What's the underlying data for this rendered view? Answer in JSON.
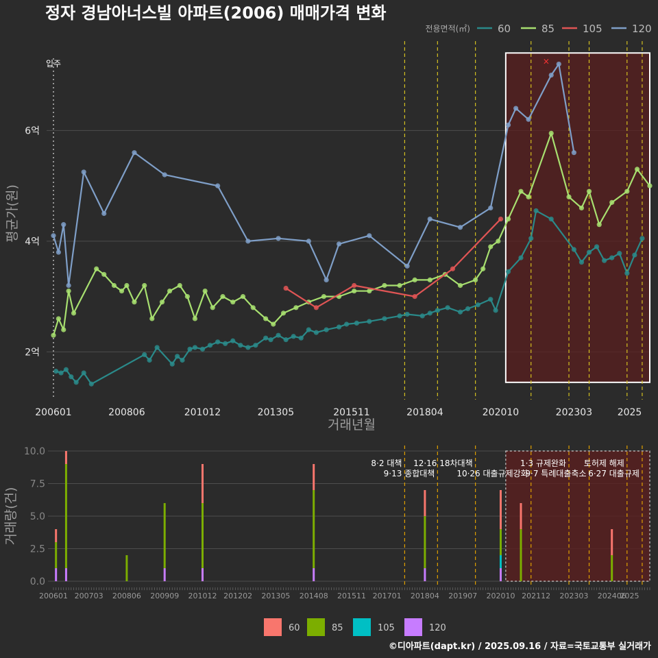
{
  "title": "정자 경남아너스빌 아파트(2006) 매매가격 변화",
  "caption": "©디아파트(dapt.kr) / 2025.09.16 / 자료=국토교통부 실거래가",
  "colors": {
    "60": "#f8766d",
    "85": "#7cae00",
    "105": "#00bfc4",
    "120": "#c77cff",
    "line60": "#2a8a8a",
    "line85": "#a8e070",
    "line105": "#e05555",
    "line120": "#7f9fc8",
    "vline": "#d4c020",
    "box": "#ffffff",
    "highlight": "#5a1f1f"
  },
  "chart_data": [
    {
      "type": "line",
      "xlabel": "거래년월",
      "ylabel": "평균가(원)",
      "x_ticks": [
        "200601",
        "200806",
        "201012",
        "201305",
        "201511",
        "201804",
        "202010",
        "202303",
        "2025"
      ],
      "y_ticks": [
        {
          "value": 2,
          "label": "2억"
        },
        {
          "value": 4,
          "label": "4억"
        },
        {
          "value": 6,
          "label": "6억"
        }
      ],
      "ylim": [
        1.2,
        7.8
      ],
      "xlim": [
        "2006-01",
        "2025-09"
      ],
      "legend_title": "전용면적(㎡)",
      "legend_position": "top-right",
      "occupancy_label": "입주",
      "occupancy_date": "2006-01",
      "policy_dates": [
        "2017-08",
        "2018-09",
        "2019-12",
        "2021-10",
        "2023-01",
        "2023-09",
        "2024-12",
        "2025-06"
      ],
      "highlight_range": [
        "2020-12",
        "2025-09"
      ],
      "max_marker": {
        "x": "2022-04",
        "y": 7.25
      },
      "series": [
        {
          "name": "60",
          "points": [
            [
              "2006-02",
              1.65
            ],
            [
              "2006-04",
              1.62
            ],
            [
              "2006-06",
              1.68
            ],
            [
              "2006-08",
              1.55
            ],
            [
              "2006-10",
              1.45
            ],
            [
              "2007-01",
              1.62
            ],
            [
              "2007-04",
              1.42
            ],
            [
              "2009-01",
              1.95
            ],
            [
              "2009-03",
              1.85
            ],
            [
              "2009-06",
              2.08
            ],
            [
              "2009-12",
              1.78
            ],
            [
              "2010-02",
              1.92
            ],
            [
              "2010-04",
              1.85
            ],
            [
              "2010-07",
              2.05
            ],
            [
              "2010-09",
              2.08
            ],
            [
              "2010-12",
              2.05
            ],
            [
              "2011-03",
              2.12
            ],
            [
              "2011-06",
              2.18
            ],
            [
              "2011-09",
              2.15
            ],
            [
              "2011-12",
              2.2
            ],
            [
              "2012-03",
              2.12
            ],
            [
              "2012-06",
              2.08
            ],
            [
              "2012-09",
              2.12
            ],
            [
              "2013-01",
              2.25
            ],
            [
              "2013-03",
              2.22
            ],
            [
              "2013-06",
              2.3
            ],
            [
              "2013-09",
              2.22
            ],
            [
              "2013-12",
              2.28
            ],
            [
              "2014-03",
              2.25
            ],
            [
              "2014-06",
              2.4
            ],
            [
              "2014-09",
              2.35
            ],
            [
              "2015-01",
              2.4
            ],
            [
              "2015-06",
              2.45
            ],
            [
              "2015-09",
              2.5
            ],
            [
              "2016-01",
              2.52
            ],
            [
              "2016-06",
              2.55
            ],
            [
              "2016-12",
              2.6
            ],
            [
              "2017-06",
              2.65
            ],
            [
              "2017-09",
              2.68
            ],
            [
              "2018-03",
              2.65
            ],
            [
              "2018-06",
              2.7
            ],
            [
              "2018-09",
              2.75
            ],
            [
              "2019-01",
              2.8
            ],
            [
              "2019-06",
              2.72
            ],
            [
              "2019-09",
              2.78
            ],
            [
              "2020-01",
              2.85
            ],
            [
              "2020-06",
              2.95
            ],
            [
              "2020-08",
              2.75
            ],
            [
              "2021-01",
              3.45
            ],
            [
              "2021-06",
              3.7
            ],
            [
              "2021-10",
              4.05
            ],
            [
              "2021-12",
              4.55
            ],
            [
              "2022-06",
              4.4
            ],
            [
              "2023-03",
              3.85
            ],
            [
              "2023-06",
              3.62
            ],
            [
              "2023-09",
              3.8
            ],
            [
              "2023-12",
              3.9
            ],
            [
              "2024-03",
              3.65
            ],
            [
              "2024-06",
              3.7
            ],
            [
              "2024-09",
              3.78
            ],
            [
              "2024-12",
              3.42
            ],
            [
              "2025-03",
              3.75
            ],
            [
              "2025-06",
              4.05
            ]
          ]
        },
        {
          "name": "85",
          "points": [
            [
              "2006-01",
              2.3
            ],
            [
              "2006-03",
              2.6
            ],
            [
              "2006-05",
              2.4
            ],
            [
              "2006-07",
              3.1
            ],
            [
              "2006-09",
              2.7
            ],
            [
              "2007-06",
              3.5
            ],
            [
              "2007-09",
              3.4
            ],
            [
              "2008-01",
              3.2
            ],
            [
              "2008-04",
              3.1
            ],
            [
              "2008-06",
              3.2
            ],
            [
              "2008-09",
              2.9
            ],
            [
              "2009-01",
              3.2
            ],
            [
              "2009-04",
              2.6
            ],
            [
              "2009-08",
              2.9
            ],
            [
              "2009-11",
              3.1
            ],
            [
              "2010-03",
              3.2
            ],
            [
              "2010-06",
              3.0
            ],
            [
              "2010-09",
              2.6
            ],
            [
              "2011-01",
              3.1
            ],
            [
              "2011-04",
              2.8
            ],
            [
              "2011-08",
              3.0
            ],
            [
              "2011-12",
              2.9
            ],
            [
              "2012-04",
              3.0
            ],
            [
              "2012-08",
              2.8
            ],
            [
              "2013-01",
              2.6
            ],
            [
              "2013-04",
              2.5
            ],
            [
              "2013-08",
              2.7
            ],
            [
              "2014-01",
              2.8
            ],
            [
              "2014-06",
              2.9
            ],
            [
              "2014-12",
              3.0
            ],
            [
              "2015-06",
              3.0
            ],
            [
              "2015-12",
              3.1
            ],
            [
              "2016-06",
              3.1
            ],
            [
              "2016-12",
              3.2
            ],
            [
              "2017-06",
              3.2
            ],
            [
              "2017-12",
              3.3
            ],
            [
              "2018-06",
              3.3
            ],
            [
              "2018-12",
              3.4
            ],
            [
              "2019-06",
              3.2
            ],
            [
              "2019-12",
              3.3
            ],
            [
              "2020-03",
              3.5
            ],
            [
              "2020-06",
              3.9
            ],
            [
              "2020-09",
              4.0
            ],
            [
              "2021-01",
              4.4
            ],
            [
              "2021-06",
              4.9
            ],
            [
              "2021-09",
              4.8
            ],
            [
              "2022-06",
              5.95
            ],
            [
              "2023-01",
              4.8
            ],
            [
              "2023-06",
              4.6
            ],
            [
              "2023-09",
              4.9
            ],
            [
              "2024-01",
              4.3
            ],
            [
              "2024-06",
              4.7
            ],
            [
              "2024-12",
              4.9
            ],
            [
              "2025-04",
              5.3
            ],
            [
              "2025-09",
              5.0
            ]
          ]
        },
        {
          "name": "105",
          "points": [
            [
              "2013-09",
              3.15
            ],
            [
              "2014-09",
              2.8
            ],
            [
              "2015-12",
              3.2
            ],
            [
              "2017-12",
              3.0
            ],
            [
              "2019-03",
              3.5
            ],
            [
              "2020-10",
              4.4
            ]
          ]
        },
        {
          "name": "120",
          "points": [
            [
              "2006-01",
              4.1
            ],
            [
              "2006-03",
              3.8
            ],
            [
              "2006-05",
              4.3
            ],
            [
              "2006-07",
              3.2
            ],
            [
              "2007-01",
              5.25
            ],
            [
              "2007-09",
              4.5
            ],
            [
              "2008-09",
              5.6
            ],
            [
              "2009-09",
              5.2
            ],
            [
              "2011-06",
              5.0
            ],
            [
              "2012-06",
              4.0
            ],
            [
              "2013-06",
              4.05
            ],
            [
              "2014-06",
              4.0
            ],
            [
              "2015-01",
              3.3
            ],
            [
              "2015-06",
              3.95
            ],
            [
              "2016-06",
              4.1
            ],
            [
              "2017-09",
              3.55
            ],
            [
              "2018-06",
              4.4
            ],
            [
              "2019-06",
              4.25
            ],
            [
              "2020-06",
              4.6
            ],
            [
              "2021-01",
              6.1
            ],
            [
              "2021-04",
              6.4
            ],
            [
              "2021-09",
              6.2
            ],
            [
              "2022-06",
              7.0
            ],
            [
              "2022-09",
              7.2
            ],
            [
              "2023-03",
              5.6
            ]
          ]
        }
      ]
    },
    {
      "type": "bar",
      "stacked": true,
      "ylabel": "거래량(건)",
      "y_ticks": [
        "0.0",
        "2.5",
        "5.0",
        "7.5",
        "10.0"
      ],
      "ylim": [
        0,
        10
      ],
      "x_ticks": [
        "200601",
        "200703",
        "200806",
        "200909",
        "201012",
        "201202",
        "201305",
        "201408",
        "201511",
        "201701",
        "201804",
        "201907",
        "202010",
        "202112",
        "202303",
        "202406",
        "2025"
      ],
      "policy_annotations": [
        {
          "date": "2017-08",
          "label": "8·2 대책"
        },
        {
          "date": "2018-09",
          "label": "9·13 종합대책"
        },
        {
          "date": "2019-12",
          "label": "12·16 18차대책"
        },
        {
          "date": "2021-10",
          "label": "10·26 대출규제강화"
        },
        {
          "date": "2023-01",
          "label": "1·3 규제완화"
        },
        {
          "date": "2023-09",
          "label": "9·7 특례대출축소"
        },
        {
          "date": "2024-12",
          "label": "토허제 해제"
        },
        {
          "date": "2025-06",
          "label": "6·27 대출규제"
        }
      ],
      "highlight_range": [
        "2020-12",
        "2025-09"
      ],
      "legend": [
        "60",
        "85",
        "105",
        "120"
      ],
      "samples": [
        {
          "date": "2006-02",
          "60": 1,
          "85": 2,
          "105": 0,
          "120": 1
        },
        {
          "date": "2006-06",
          "60": 1,
          "85": 8,
          "105": 0,
          "120": 1
        },
        {
          "date": "2008-06",
          "60": 0,
          "85": 2,
          "105": 0,
          "120": 0
        },
        {
          "date": "2009-09",
          "60": 0,
          "85": 5,
          "105": 0,
          "120": 1
        },
        {
          "date": "2010-12",
          "60": 3,
          "85": 5,
          "105": 0,
          "120": 1
        },
        {
          "date": "2014-08",
          "60": 2,
          "85": 6,
          "105": 0,
          "120": 1
        },
        {
          "date": "2018-04",
          "60": 2,
          "85": 4,
          "105": 0,
          "120": 1
        },
        {
          "date": "2020-10",
          "60": 3,
          "85": 2,
          "105": 1,
          "120": 1
        },
        {
          "date": "2021-06",
          "60": 2,
          "85": 4,
          "105": 0,
          "120": 0
        },
        {
          "date": "2024-06",
          "60": 2,
          "85": 2,
          "105": 0,
          "120": 0
        }
      ]
    }
  ]
}
